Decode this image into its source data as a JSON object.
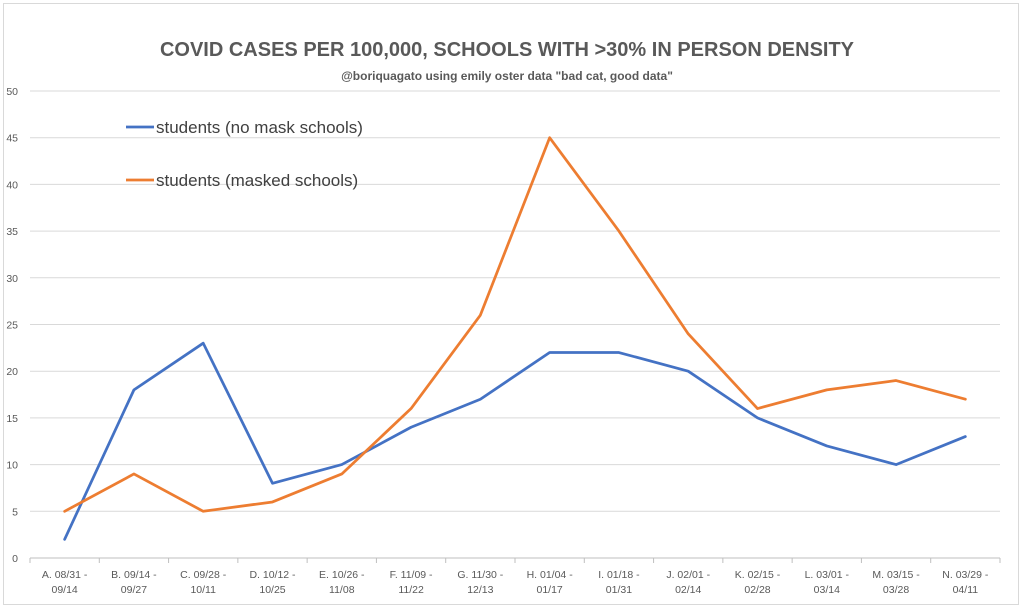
{
  "chart_data": {
    "type": "line",
    "title": "COVID CASES PER 100,000, SCHOOLS WITH >30% IN PERSON DENSITY",
    "subtitle": "@boriquagato using emily oster data \"bad cat, good data\"",
    "xlabel": "",
    "ylabel": "",
    "ylim": [
      0,
      50
    ],
    "yticks": [
      0,
      5,
      10,
      15,
      20,
      25,
      30,
      35,
      40,
      45,
      50
    ],
    "grid": true,
    "legend_position": "top-left",
    "categories": [
      [
        "A. 08/31 -",
        "09/14"
      ],
      [
        "B. 09/14 -",
        "09/27"
      ],
      [
        "C. 09/28 -",
        "10/11"
      ],
      [
        "D. 10/12 -",
        "10/25"
      ],
      [
        "E. 10/26 -",
        "11/08"
      ],
      [
        "F. 11/09 -",
        "11/22"
      ],
      [
        "G. 11/30 -",
        "12/13"
      ],
      [
        "H. 01/04 -",
        "01/17"
      ],
      [
        "I. 01/18 -",
        "01/31"
      ],
      [
        "J. 02/01 -",
        "02/14"
      ],
      [
        "K. 02/15 -",
        "02/28"
      ],
      [
        "L. 03/01 -",
        "03/14"
      ],
      [
        "M. 03/15 -",
        "03/28"
      ],
      [
        "N. 03/29 -",
        "04/11"
      ]
    ],
    "series": [
      {
        "name": "students (no mask schools)",
        "color": "#4472c4",
        "values": [
          2,
          18,
          23,
          8,
          10,
          14,
          17,
          22,
          22,
          20,
          15,
          12,
          10,
          13
        ]
      },
      {
        "name": "students (masked schools)",
        "color": "#ed7d31",
        "values": [
          5,
          9,
          5,
          6,
          9,
          16,
          26,
          45,
          35,
          24,
          16,
          18,
          19,
          17
        ]
      }
    ]
  }
}
